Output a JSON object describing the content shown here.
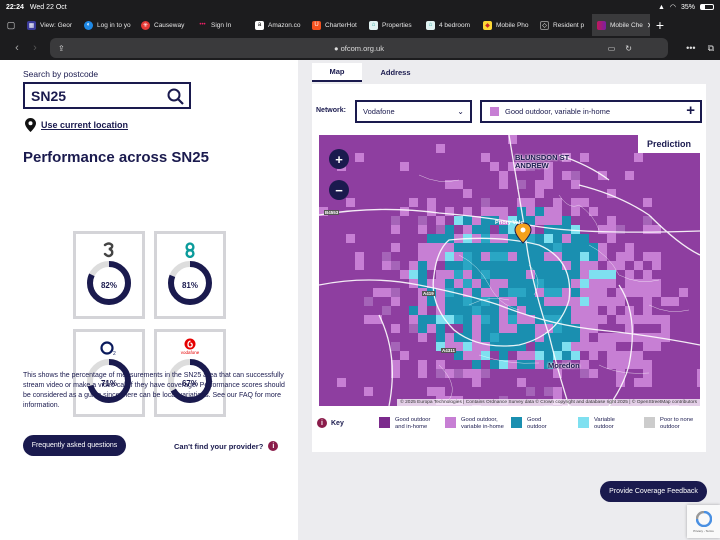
{
  "status_bar": {
    "time": "22:24",
    "date": "Wed 22 Oct",
    "battery": "35%"
  },
  "tabs": [
    {
      "label": "View: Geor",
      "icon": "grid-icon",
      "color": "#3b3b9a"
    },
    {
      "label": "Log in to yo",
      "icon": "login-icon",
      "color": "#1e88e5"
    },
    {
      "label": "Causeway",
      "icon": "causeway-icon",
      "color": "#e53935"
    },
    {
      "label": "Sign In",
      "icon": "dots-icon",
      "color": "#555555"
    },
    {
      "label": "Amazon.co",
      "icon": "amazon-icon",
      "color": "#ffffff"
    },
    {
      "label": "CharterHot",
      "icon": "charter-icon",
      "color": "#f4511e"
    },
    {
      "label": "Properties",
      "icon": "house-icon",
      "color": "#e0f2f1"
    },
    {
      "label": "4 bedroom",
      "icon": "house-icon",
      "color": "#e0f2f1"
    },
    {
      "label": "Mobile Pho",
      "icon": "phone-icon",
      "color": "#fdd835"
    },
    {
      "label": "Resident p",
      "icon": "resident-icon",
      "color": "#222222"
    },
    {
      "label": "Mobile Che",
      "icon": "ofcom-icon",
      "color": "#c2185b"
    }
  ],
  "url": "ofcom.org.uk",
  "search": {
    "label": "Search by postcode",
    "value": "SN25"
  },
  "use_location": "Use current location",
  "performance_title": "Performance across SN25",
  "operators": [
    {
      "name": "Three",
      "percent": "82%",
      "fraction": 0.82
    },
    {
      "name": "EE",
      "percent": "81%",
      "fraction": 0.81
    },
    {
      "name": "O2",
      "percent": "71%",
      "fraction": 0.71
    },
    {
      "name": "vodafone",
      "percent": "67%",
      "fraction": 0.67
    }
  ],
  "description": "This shows the percentage of measurements in the SN25 area that can successfully stream video or make a video call if they have coverage. Performance scores should be considered as a guide since there can be local variations. See our FAQ for more information.",
  "faq_button": "Frequently asked questions",
  "cant_find": "Can't find your provider?",
  "map_tabs": {
    "map": "Map",
    "address": "Address"
  },
  "network": {
    "label": "Network:",
    "value": "Vodafone"
  },
  "filter": {
    "label": "Good outdoor, variable in-home"
  },
  "map": {
    "prediction": "Prediction",
    "zoom_in": "+",
    "zoom_out": "−",
    "place_labels": [
      "BLUNSDON ST ANDREW",
      "Moredon",
      "Priory Vale"
    ],
    "road_labels": [
      "B4553",
      "A419",
      "A4311"
    ],
    "attribution": "© 2025 Europa Technologies | Contains Ordnance Survey data © Crown copyright and database right 2025 | © OpenStreetMap contributors"
  },
  "key": {
    "title": "Key",
    "items": [
      {
        "label": "Good outdoor and in-home",
        "color": "#7b2a8c"
      },
      {
        "label": "Good outdoor, variable in-home",
        "color": "#c77fd4"
      },
      {
        "label": "Good outdoor",
        "color": "#1a8fb0"
      },
      {
        "label": "Variable outdoor",
        "color": "#7fe0f0"
      },
      {
        "label": "Poor to none outdoor",
        "color": "#cccccc"
      }
    ]
  },
  "feedback_button": "Provide Coverage Feedback",
  "recaptcha": "Privacy - Terms"
}
